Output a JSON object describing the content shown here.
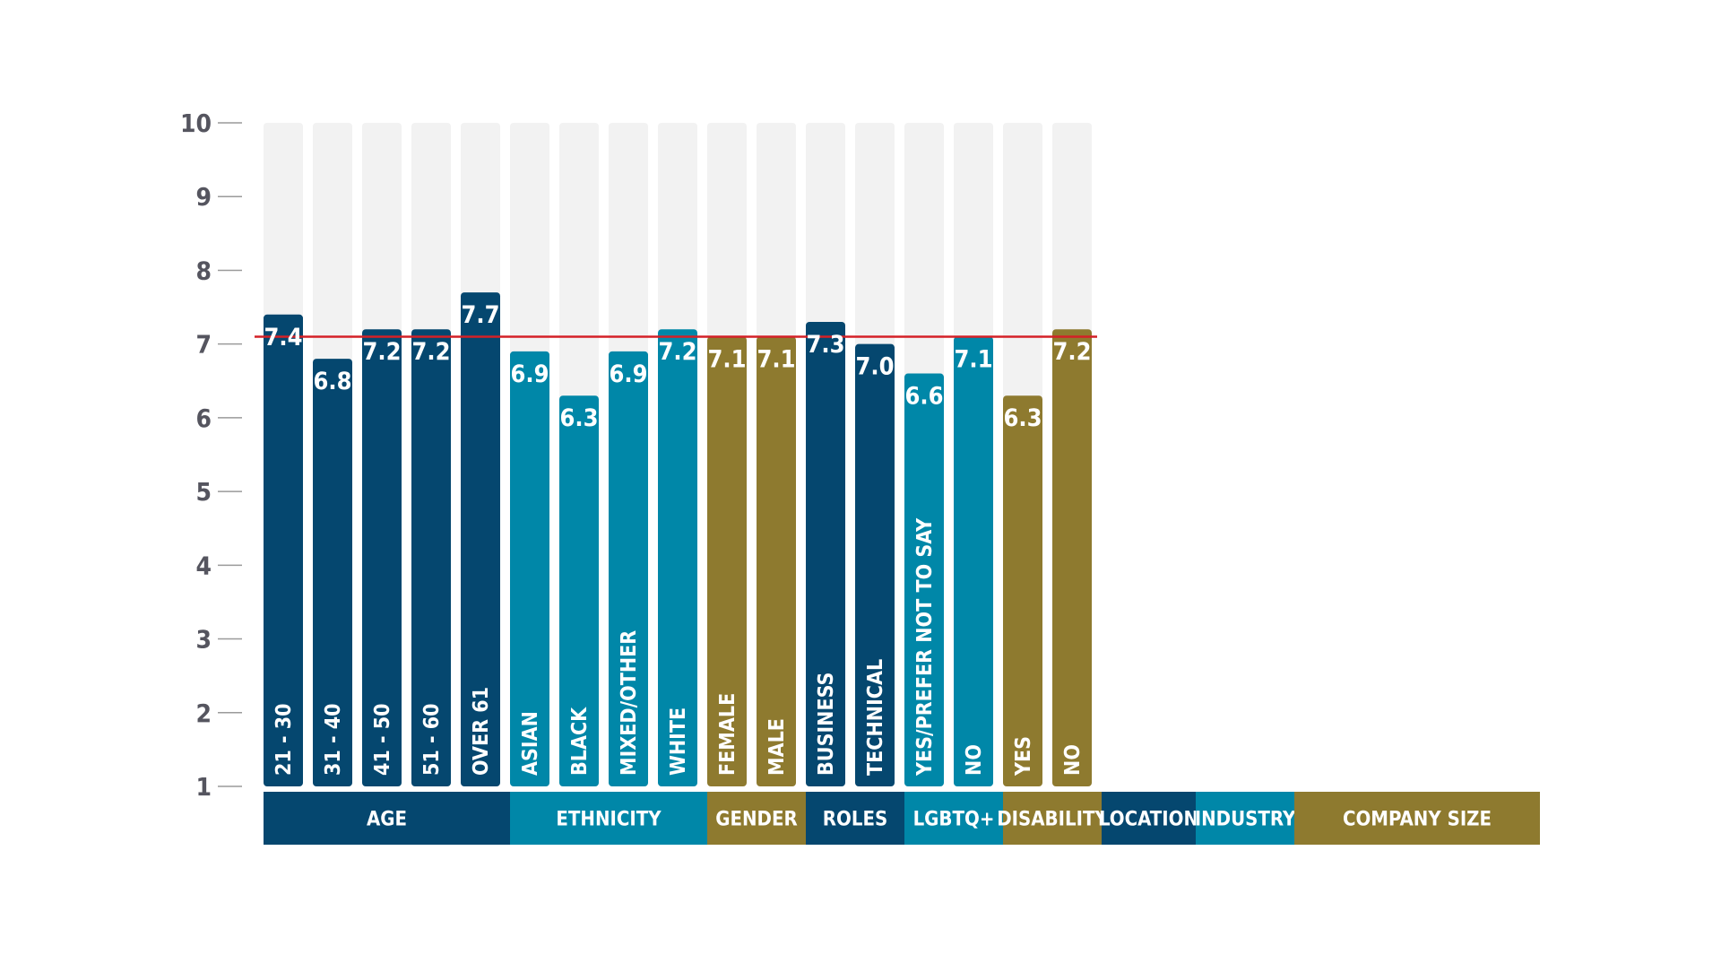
{
  "chart_data": {
    "type": "bar",
    "title": "",
    "xlabel": "",
    "ylabel": "",
    "ylim": [
      1,
      10
    ],
    "yticks": [
      1,
      2,
      3,
      4,
      5,
      6,
      7,
      8,
      9,
      10
    ],
    "grid": false,
    "reference_line": {
      "value": 7.1,
      "color": "#d42027"
    },
    "bar_background_color": "#f2f2f2",
    "colors": {
      "navy": "#05476f",
      "teal": "#0087a8",
      "gold": "#8e7a2f"
    },
    "categories": [
      "21 - 30",
      "31 - 40",
      "41 - 50",
      "51 - 60",
      "OVER 61",
      "ASIAN",
      "BLACK",
      "MIXED/OTHER",
      "WHITE",
      "FEMALE",
      "MALE",
      "BUSINESS",
      "TECHNICAL",
      "YES/PREFER NOT TO SAY",
      "NO",
      "YES",
      "NO"
    ],
    "values": [
      7.4,
      6.8,
      7.2,
      7.2,
      7.7,
      6.9,
      6.3,
      6.9,
      7.2,
      7.1,
      7.1,
      7.3,
      7.0,
      6.6,
      7.1,
      6.3,
      7.2
    ],
    "value_labels": [
      "7.4",
      "6.8",
      "7.2",
      "7.2",
      "7.7",
      "6.9",
      "6.3",
      "6.9",
      "7.2",
      "7.1",
      "7.1",
      "7.3",
      "7.0",
      "6.6",
      "7.1",
      "6.3",
      "7.2"
    ],
    "bar_colors": [
      "navy",
      "navy",
      "navy",
      "navy",
      "navy",
      "teal",
      "teal",
      "teal",
      "teal",
      "gold",
      "gold",
      "navy",
      "navy",
      "teal",
      "teal",
      "gold",
      "gold"
    ],
    "groups": [
      {
        "label": "AGE",
        "color": "navy",
        "bars": 5
      },
      {
        "label": "ETHNICITY",
        "color": "teal",
        "bars": 4
      },
      {
        "label": "GENDER",
        "color": "gold",
        "bars": 2
      },
      {
        "label": "ROLES",
        "color": "navy",
        "bars": 2
      },
      {
        "label": "LGBTQ+",
        "color": "teal",
        "bars": 2
      },
      {
        "label": "DISABILITY",
        "color": "gold",
        "bars": 2
      },
      {
        "label": "LOCATION",
        "color": "navy",
        "bars": 0
      },
      {
        "label": "INDUSTRY",
        "color": "teal",
        "bars": 0
      },
      {
        "label": "COMPANY SIZE",
        "color": "gold",
        "bars": 0
      }
    ]
  }
}
